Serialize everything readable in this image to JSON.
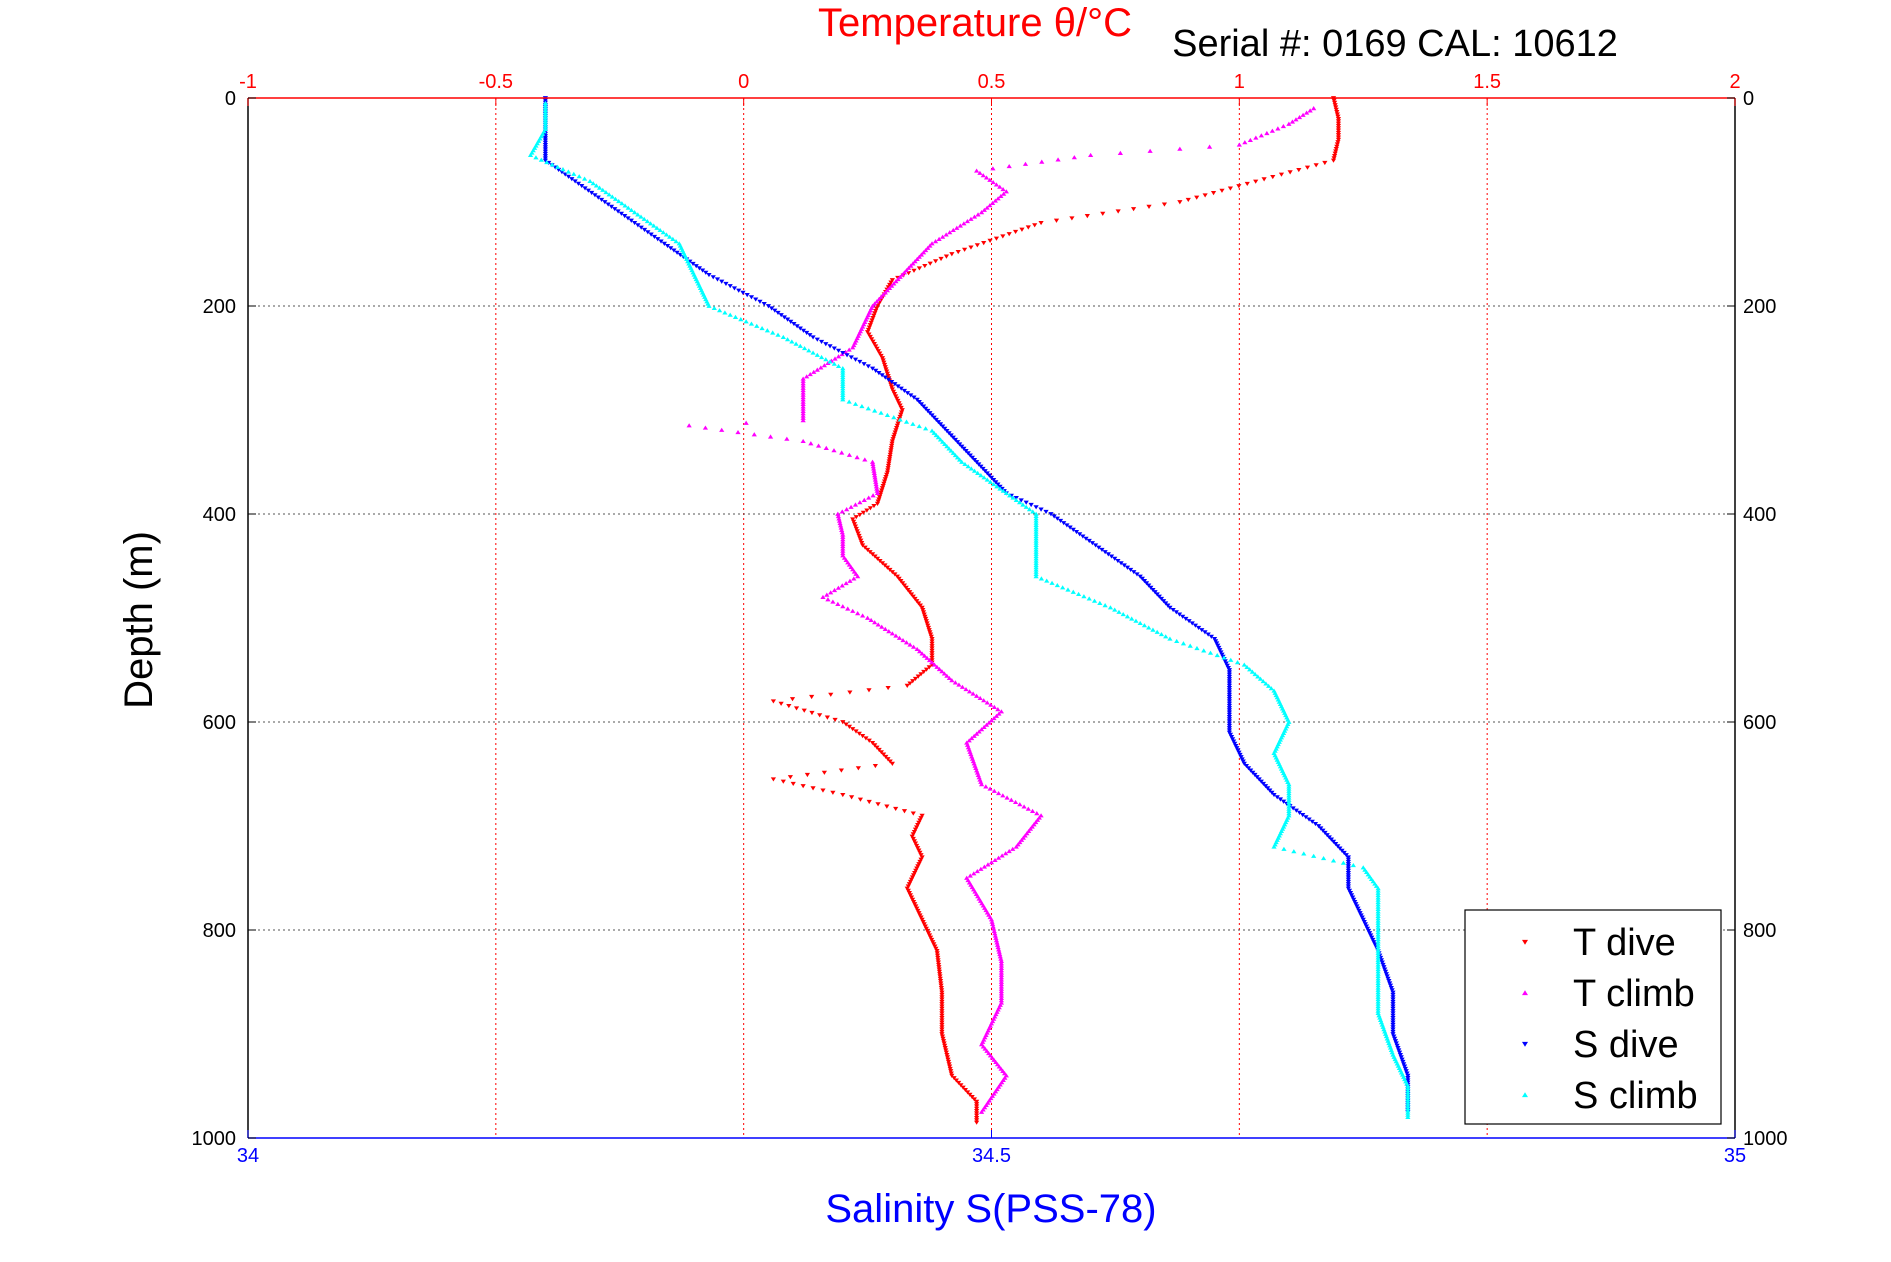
{
  "chart_data": {
    "type": "scatter",
    "title": "Temperature θ/°C",
    "annotation": "Serial #: 0169 CAL: 10612",
    "ylabel": "Depth (m)",
    "xlabel_bottom": "Salinity S(PSS-78)",
    "xlabel_top": "Temperature θ/°C",
    "temperature_axis": {
      "min": -1,
      "max": 2,
      "ticks": [
        "-1",
        "-0.5",
        "0",
        "0.5",
        "1",
        "1.5",
        "2"
      ],
      "color": "#ff0000"
    },
    "salinity_axis": {
      "min": 34,
      "max": 35,
      "ticks": [
        "34",
        "34.5",
        "35"
      ],
      "color": "#0000ff"
    },
    "depth_axis": {
      "min": 0,
      "max": 1000,
      "reversed": true,
      "ticks": [
        "0",
        "200",
        "400",
        "600",
        "800",
        "1000"
      ]
    },
    "grid": true,
    "legend_position": "bottom-right",
    "series": [
      {
        "name": "T dive",
        "axis": "temperature",
        "color": "#ff0000",
        "marker": "triangle-down",
        "points": [
          [
            1.19,
            0
          ],
          [
            1.2,
            20
          ],
          [
            1.2,
            40
          ],
          [
            1.19,
            60
          ],
          [
            1.05,
            78
          ],
          [
            0.88,
            100
          ],
          [
            0.6,
            120
          ],
          [
            0.42,
            150
          ],
          [
            0.3,
            175
          ],
          [
            0.27,
            200
          ],
          [
            0.25,
            225
          ],
          [
            0.28,
            250
          ],
          [
            0.3,
            280
          ],
          [
            0.32,
            300
          ],
          [
            0.3,
            330
          ],
          [
            0.29,
            360
          ],
          [
            0.27,
            390
          ],
          [
            0.22,
            405
          ],
          [
            0.24,
            430
          ],
          [
            0.31,
            460
          ],
          [
            0.36,
            490
          ],
          [
            0.38,
            520
          ],
          [
            0.38,
            545
          ],
          [
            0.33,
            565
          ],
          [
            0.06,
            580
          ],
          [
            0.2,
            600
          ],
          [
            0.26,
            620
          ],
          [
            0.3,
            640
          ],
          [
            0.06,
            655
          ],
          [
            0.2,
            670
          ],
          [
            0.36,
            690
          ],
          [
            0.34,
            710
          ],
          [
            0.36,
            730
          ],
          [
            0.33,
            760
          ],
          [
            0.36,
            790
          ],
          [
            0.39,
            820
          ],
          [
            0.4,
            860
          ],
          [
            0.4,
            900
          ],
          [
            0.42,
            940
          ],
          [
            0.47,
            965
          ],
          [
            0.47,
            985
          ]
        ]
      },
      {
        "name": "T climb",
        "axis": "temperature",
        "color": "#ff00ff",
        "marker": "triangle-up",
        "points": [
          [
            1.15,
            10
          ],
          [
            1.1,
            25
          ],
          [
            1.0,
            45
          ],
          [
            0.7,
            55
          ],
          [
            0.47,
            70
          ],
          [
            0.53,
            90
          ],
          [
            0.48,
            110
          ],
          [
            0.38,
            140
          ],
          [
            0.32,
            170
          ],
          [
            0.26,
            200
          ],
          [
            0.22,
            240
          ],
          [
            0.12,
            270
          ],
          [
            0.12,
            290
          ],
          [
            0.12,
            310
          ],
          [
            -0.11,
            315
          ],
          [
            0.12,
            330
          ],
          [
            0.26,
            350
          ],
          [
            0.27,
            380
          ],
          [
            0.19,
            400
          ],
          [
            0.2,
            420
          ],
          [
            0.2,
            440
          ],
          [
            0.23,
            460
          ],
          [
            0.16,
            480
          ],
          [
            0.25,
            500
          ],
          [
            0.35,
            530
          ],
          [
            0.42,
            560
          ],
          [
            0.52,
            590
          ],
          [
            0.45,
            620
          ],
          [
            0.48,
            660
          ],
          [
            0.6,
            690
          ],
          [
            0.55,
            720
          ],
          [
            0.45,
            750
          ],
          [
            0.5,
            790
          ],
          [
            0.52,
            830
          ],
          [
            0.52,
            870
          ],
          [
            0.48,
            910
          ],
          [
            0.53,
            940
          ],
          [
            0.48,
            975
          ]
        ]
      },
      {
        "name": "S dive",
        "axis": "salinity",
        "color": "#0000ff",
        "marker": "triangle-down",
        "points": [
          [
            34.2,
            0
          ],
          [
            34.2,
            30
          ],
          [
            34.2,
            60
          ],
          [
            34.22,
            80
          ],
          [
            34.24,
            100
          ],
          [
            34.26,
            120
          ],
          [
            34.28,
            140
          ],
          [
            34.31,
            170
          ],
          [
            34.35,
            200
          ],
          [
            34.38,
            230
          ],
          [
            34.42,
            260
          ],
          [
            34.45,
            290
          ],
          [
            34.47,
            320
          ],
          [
            34.49,
            350
          ],
          [
            34.51,
            380
          ],
          [
            34.54,
            400
          ],
          [
            34.57,
            430
          ],
          [
            34.6,
            460
          ],
          [
            34.62,
            490
          ],
          [
            34.65,
            520
          ],
          [
            34.66,
            550
          ],
          [
            34.66,
            580
          ],
          [
            34.66,
            610
          ],
          [
            34.67,
            640
          ],
          [
            34.69,
            670
          ],
          [
            34.72,
            700
          ],
          [
            34.74,
            730
          ],
          [
            34.74,
            760
          ],
          [
            34.75,
            790
          ],
          [
            34.76,
            820
          ],
          [
            34.77,
            860
          ],
          [
            34.77,
            900
          ],
          [
            34.78,
            940
          ],
          [
            34.78,
            975
          ]
        ]
      },
      {
        "name": "S climb",
        "axis": "salinity",
        "color": "#00ffff",
        "marker": "triangle-up",
        "points": [
          [
            34.2,
            5
          ],
          [
            34.2,
            30
          ],
          [
            34.19,
            55
          ],
          [
            34.23,
            80
          ],
          [
            34.26,
            110
          ],
          [
            34.29,
            140
          ],
          [
            34.3,
            170
          ],
          [
            34.31,
            200
          ],
          [
            34.36,
            230
          ],
          [
            34.4,
            260
          ],
          [
            34.4,
            290
          ],
          [
            34.46,
            320
          ],
          [
            34.48,
            350
          ],
          [
            34.51,
            380
          ],
          [
            34.53,
            400
          ],
          [
            34.53,
            430
          ],
          [
            34.53,
            460
          ],
          [
            34.58,
            490
          ],
          [
            34.62,
            520
          ],
          [
            34.67,
            545
          ],
          [
            34.69,
            570
          ],
          [
            34.7,
            600
          ],
          [
            34.69,
            630
          ],
          [
            34.7,
            660
          ],
          [
            34.7,
            690
          ],
          [
            34.69,
            720
          ],
          [
            34.75,
            740
          ],
          [
            34.76,
            760
          ],
          [
            34.76,
            800
          ],
          [
            34.76,
            840
          ],
          [
            34.76,
            880
          ],
          [
            34.77,
            920
          ],
          [
            34.78,
            950
          ],
          [
            34.78,
            980
          ]
        ]
      }
    ]
  }
}
